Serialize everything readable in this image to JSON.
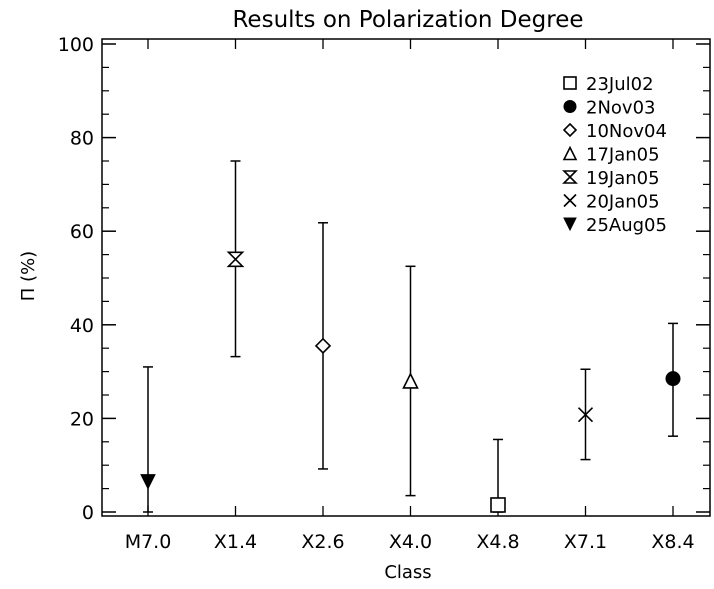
{
  "chart_data": {
    "type": "scatter",
    "title": "Results on Polarization Degree",
    "xlabel": "Class",
    "ylabel": "Π (%)",
    "categories": [
      "M7.0",
      "X1.4",
      "X2.6",
      "X4.0",
      "X4.8",
      "X7.1",
      "X8.4"
    ],
    "ylim": [
      0,
      100
    ],
    "yticks": [
      0,
      20,
      40,
      60,
      80,
      100
    ],
    "grid": false,
    "legend_position": "top-right",
    "series": [
      {
        "name": "23Jul02",
        "marker": "square-open",
        "category": "X4.8",
        "y": 1.5,
        "err_low": 0,
        "err_high": 15.5
      },
      {
        "name": "2Nov03",
        "marker": "circle-filled",
        "category": "X8.4",
        "y": 28.5,
        "err_low": 16.2,
        "err_high": 40.3
      },
      {
        "name": "10Nov04",
        "marker": "diamond-open",
        "category": "X2.6",
        "y": 35.5,
        "err_low": 9.2,
        "err_high": 61.8
      },
      {
        "name": "17Jan05",
        "marker": "triangle-open",
        "category": "X4.0",
        "y": 28.0,
        "err_low": 3.5,
        "err_high": 52.5
      },
      {
        "name": "19Jan05",
        "marker": "hourglass-open",
        "category": "X1.4",
        "y": 54.0,
        "err_low": 33.2,
        "err_high": 75.0
      },
      {
        "name": "20Jan05",
        "marker": "x-cross",
        "category": "X7.1",
        "y": 20.8,
        "err_low": 11.2,
        "err_high": 30.5
      },
      {
        "name": "25Aug05",
        "marker": "triangle-down-filled",
        "category": "M7.0",
        "y": 6.5,
        "err_low": 0,
        "err_high": 31.0
      }
    ]
  }
}
